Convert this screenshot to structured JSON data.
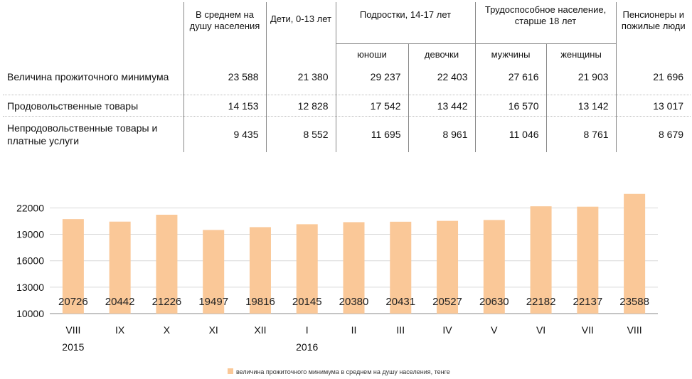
{
  "table": {
    "headers": {
      "per_capita": "В среднем на душу населения",
      "children": "Дети, 0-13 лет",
      "teens": "Подростки, 14-17 лет",
      "working": "Трудоспособное население, старше 18 лет",
      "pensioners": "Пенсионеры и пожилые люди",
      "boys": "юноши",
      "girls": "девочки",
      "men": "мужчины",
      "women": "женщины"
    },
    "rows": [
      {
        "label": "Величина прожиточного минимума",
        "bold": true,
        "values": [
          "23 588",
          "21 380",
          "29 237",
          "22 403",
          "27 616",
          "21 903",
          "21 696"
        ]
      },
      {
        "label": "Продовольственные товары",
        "bold": false,
        "values": [
          "14 153",
          "12 828",
          "17 542",
          "13 442",
          "16 570",
          "13 142",
          "13 017"
        ]
      },
      {
        "label": "Непродовольственные товары и платные услуги",
        "bold": false,
        "values": [
          "9 435",
          "8 552",
          "11 695",
          "8 961",
          "11 046",
          "8 761",
          "8 679"
        ]
      }
    ]
  },
  "chart_data": {
    "type": "bar",
    "categories": [
      "VIII",
      "IX",
      "X",
      "XI",
      "XII",
      "I",
      "II",
      "III",
      "IV",
      "V",
      "VI",
      "VII",
      "VIII"
    ],
    "year_labels": [
      "2015",
      "2016"
    ],
    "series": [
      {
        "name": "величина прожиточного минимума в среднем на душу населения, тенге",
        "values": [
          20726,
          20442,
          21226,
          19497,
          19816,
          20145,
          20380,
          20431,
          20527,
          20630,
          22182,
          22137,
          23588
        ],
        "color": "#fac898"
      }
    ],
    "ylim": [
      10000,
      23000
    ],
    "yticks": [
      10000,
      13000,
      16000,
      19000,
      22000
    ],
    "xlabel": "",
    "ylabel": "",
    "title": "",
    "legend_position": "bottom"
  }
}
